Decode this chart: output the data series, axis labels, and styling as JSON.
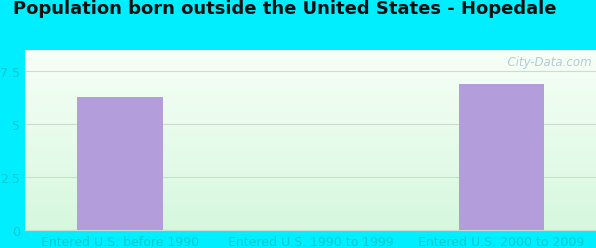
{
  "title": "Population born outside the United States - Hopedale",
  "categories": [
    "Entered U.S. before 1990",
    "Entered U.S. 1990 to 1999",
    "Entered U.S. 2000 to 2009"
  ],
  "values": [
    6.3,
    0,
    6.9
  ],
  "bar_color": "#b39ddb",
  "bar_width": 0.45,
  "ylim": [
    0,
    8.5
  ],
  "yticks": [
    0,
    2.5,
    5,
    7.5
  ],
  "outer_bg": "#00eeff",
  "tick_color": "#00cccc",
  "title_fontsize": 13,
  "tick_fontsize": 9,
  "watermark": "  City-Data.com",
  "grid_color": "#ccddcc",
  "xlim": [
    -0.5,
    2.5
  ]
}
